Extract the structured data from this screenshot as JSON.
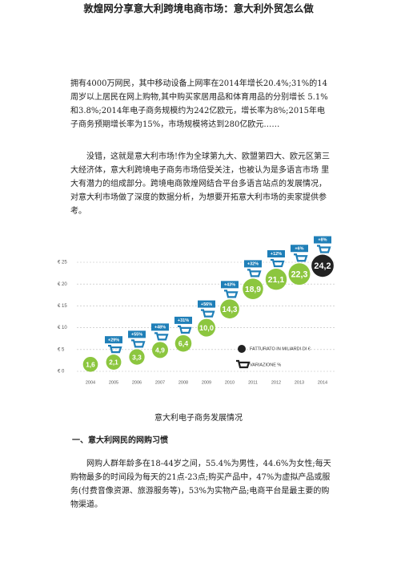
{
  "title": "敦煌网分享意大利跨境电商市场：意大利外贸怎么做",
  "paragraphs": [
    "拥有4000万网民，其中移动设备上网率在2014年增长20.4%;31%的14周岁以上居民在网上购物,其中购买家居用品和体育用品的分别增长 5.1%和3.8%;2014年电子商务规模约为242亿欧元，增长率为8%;2015年电子商务预期增长率为15%，市场规模将达到280亿欧元……",
    "没错，这就是意大利市场!作为全球第九大、欧盟第四大、欧元区第三大经济体，意大利跨境电子商务市场倍受关注，也被认为是多语言市场 里大有潜力的组成部分。跨境电商敦煌网结合平台多语言站点的发展情况，对意大利市场做了深度的数据分析，为想要开拓意大利市场的卖家提供参考。"
  ],
  "caption": "意大利电子商务发展情况",
  "heading": "一、意大利网民的网购习惯",
  "paragraph3": "网购人群年龄多在18-44岁之间，55.4%为男性，44.6%为女性;每天购物最多的时间段为每天的21点-23点;购买产品中，47%为虚拟产品或服务(付费音像资源、旅游服务等)，53%为实物产品;电商平台是最主要的购物渠道。",
  "chart_data": {
    "type": "bubble-timeline",
    "categories": [
      "2004",
      "2005",
      "2006",
      "2007",
      "2008",
      "2009",
      "2010",
      "2011",
      "2012",
      "2013",
      "2014"
    ],
    "series": [
      {
        "name": "FATTURATO IN MILIARDI DI €",
        "color": "#8cc63f",
        "last_color": "#222222",
        "values": [
          1.6,
          2.1,
          3.3,
          4.9,
          6.4,
          10.0,
          14.3,
          18.9,
          21.1,
          22.3,
          24.2
        ],
        "value_labels": [
          "1,6",
          "2,1",
          "3,3",
          "4,9",
          "6,4",
          "10,0",
          "14,3",
          "18,9",
          "21,1",
          "22,3",
          "24,2"
        ]
      },
      {
        "name": "VARIAZIONE %",
        "color": "#1f7fb8",
        "values": [
          null,
          29,
          55,
          48,
          31,
          56,
          43,
          32,
          12,
          6,
          8
        ],
        "value_labels": [
          null,
          "+29%",
          "+55%",
          "+48%",
          "+31%",
          "+56%",
          "+43%",
          "+32%",
          "+12%",
          "+6%",
          "+8%"
        ]
      }
    ],
    "ylim": [
      0,
      25
    ],
    "yticks": [
      {
        "value": 0,
        "label": "€ 0"
      },
      {
        "value": 5,
        "label": "€ 5"
      },
      {
        "value": 10,
        "label": "€ 10"
      },
      {
        "value": 15,
        "label": "€ 15"
      },
      {
        "value": 20,
        "label": "€ 20"
      },
      {
        "value": 25,
        "label": "€ 25"
      }
    ],
    "grid": true
  }
}
